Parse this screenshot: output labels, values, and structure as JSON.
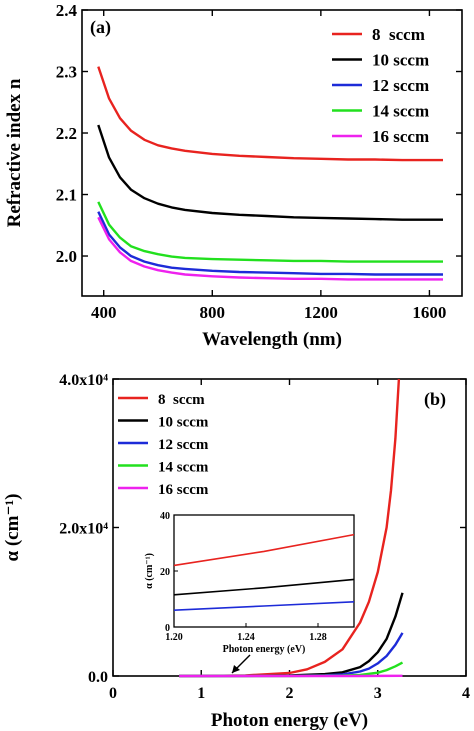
{
  "chart_data": [
    {
      "type": "line",
      "panel_label": "(a)",
      "xlabel": "Wavelength (nm)",
      "ylabel": "Refractive index n",
      "xlim": [
        320,
        1720
      ],
      "ylim": [
        1.935,
        2.4
      ],
      "xticks": [
        400,
        800,
        1200,
        1600
      ],
      "xtick_labels": [
        "400",
        "800",
        "1200",
        "1600"
      ],
      "yticks": [
        2.0,
        2.1,
        2.2,
        2.3,
        2.4
      ],
      "ytick_labels": [
        "2.0",
        "2.1",
        "2.2",
        "2.3",
        "2.4"
      ],
      "legend_position": "top-right",
      "series": [
        {
          "name": "8  sccm",
          "color": "#e8231f",
          "x": [
            380,
            420,
            460,
            500,
            550,
            600,
            650,
            700,
            800,
            900,
            1000,
            1100,
            1200,
            1300,
            1400,
            1500,
            1650
          ],
          "values": [
            2.308,
            2.256,
            2.224,
            2.204,
            2.189,
            2.18,
            2.175,
            2.171,
            2.166,
            2.163,
            2.161,
            2.159,
            2.158,
            2.157,
            2.157,
            2.156,
            2.156
          ]
        },
        {
          "name": "10 sccm",
          "color": "#000000",
          "x": [
            380,
            420,
            460,
            500,
            550,
            600,
            650,
            700,
            800,
            900,
            1000,
            1100,
            1200,
            1300,
            1400,
            1500,
            1650
          ],
          "values": [
            2.213,
            2.16,
            2.128,
            2.108,
            2.094,
            2.085,
            2.079,
            2.075,
            2.07,
            2.067,
            2.065,
            2.063,
            2.062,
            2.061,
            2.06,
            2.059,
            2.059
          ]
        },
        {
          "name": "12 sccm",
          "color": "#1d2bd8",
          "x": [
            380,
            420,
            460,
            500,
            550,
            600,
            650,
            700,
            800,
            900,
            1000,
            1100,
            1200,
            1300,
            1400,
            1500,
            1650
          ],
          "values": [
            2.072,
            2.035,
            2.014,
            2.0,
            1.991,
            1.985,
            1.981,
            1.979,
            1.976,
            1.974,
            1.973,
            1.972,
            1.971,
            1.971,
            1.97,
            1.97,
            1.97
          ]
        },
        {
          "name": "14 sccm",
          "color": "#22e01e",
          "x": [
            380,
            420,
            460,
            500,
            550,
            600,
            650,
            700,
            800,
            900,
            1000,
            1100,
            1200,
            1300,
            1400,
            1500,
            1650
          ],
          "values": [
            2.088,
            2.051,
            2.03,
            2.016,
            2.008,
            2.003,
            1.999,
            1.997,
            1.995,
            1.994,
            1.993,
            1.992,
            1.992,
            1.991,
            1.991,
            1.991,
            1.991
          ]
        },
        {
          "name": "16 sccm",
          "color": "#ee22ee",
          "x": [
            380,
            420,
            460,
            500,
            550,
            600,
            650,
            700,
            800,
            900,
            1000,
            1100,
            1200,
            1300,
            1400,
            1500,
            1650
          ],
          "values": [
            2.063,
            2.027,
            2.006,
            1.992,
            1.983,
            1.977,
            1.973,
            1.97,
            1.967,
            1.965,
            1.964,
            1.963,
            1.963,
            1.962,
            1.962,
            1.962,
            1.962
          ]
        }
      ]
    },
    {
      "type": "line",
      "panel_label": "(b)",
      "xlabel": "Photon energy (eV)",
      "ylabel": "α (cm⁻¹)",
      "xlim": [
        0,
        4
      ],
      "ylim": [
        0,
        40000
      ],
      "xticks": [
        0,
        1,
        2,
        3,
        4
      ],
      "xtick_labels": [
        "0",
        "1",
        "2",
        "3",
        "4"
      ],
      "yticks": [
        0,
        20000,
        40000
      ],
      "ytick_labels": [
        "0.0",
        "2.0x10⁴",
        "4.0x10⁴"
      ],
      "legend_position": "top-left",
      "series": [
        {
          "name": "8  sccm",
          "color": "#e8231f",
          "x": [
            0.75,
            1.0,
            1.5,
            2.0,
            2.2,
            2.4,
            2.6,
            2.8,
            2.9,
            3.0,
            3.1,
            3.15,
            3.2,
            3.24
          ],
          "values": [
            0,
            3,
            80,
            400,
            900,
            1900,
            3600,
            7200,
            10000,
            14000,
            20000,
            25000,
            32000,
            40000
          ]
        },
        {
          "name": "10 sccm",
          "color": "#000000",
          "x": [
            0.75,
            1.5,
            2.0,
            2.4,
            2.6,
            2.8,
            2.9,
            3.0,
            3.1,
            3.2,
            3.28
          ],
          "values": [
            0,
            20,
            80,
            250,
            500,
            1200,
            2000,
            3200,
            5000,
            8000,
            11200
          ]
        },
        {
          "name": "12 sccm",
          "color": "#1d2bd8",
          "x": [
            0.75,
            1.5,
            2.0,
            2.4,
            2.6,
            2.8,
            2.9,
            3.0,
            3.1,
            3.2,
            3.28
          ],
          "values": [
            0,
            8,
            30,
            100,
            220,
            600,
            1000,
            1700,
            2700,
            4200,
            5800
          ]
        },
        {
          "name": "14 sccm",
          "color": "#22e01e",
          "x": [
            0.75,
            2.0,
            2.6,
            2.8,
            3.0,
            3.1,
            3.2,
            3.28
          ],
          "values": [
            0,
            5,
            60,
            150,
            450,
            800,
            1300,
            1800
          ]
        },
        {
          "name": "16 sccm",
          "color": "#ee22ee",
          "x": [
            0.75,
            2.0,
            2.8,
            3.0,
            3.28
          ],
          "values": [
            0,
            0,
            5,
            10,
            30
          ]
        }
      ],
      "inset": {
        "xlabel": "Photon energy (eV)",
        "ylabel": "α (cm⁻¹)",
        "xlim": [
          1.2,
          1.3
        ],
        "ylim": [
          0,
          40
        ],
        "xticks": [
          1.2,
          1.24,
          1.28
        ],
        "xtick_labels": [
          "1.20",
          "1.24",
          "1.28"
        ],
        "yticks": [
          0,
          20,
          40
        ],
        "ytick_labels": [
          "0",
          "20",
          "40"
        ],
        "series": [
          {
            "name": "8  sccm",
            "color": "#e8231f",
            "x": [
              1.2,
              1.25,
              1.3
            ],
            "values": [
              22,
              27,
              33
            ]
          },
          {
            "name": "10 sccm",
            "color": "#000000",
            "x": [
              1.2,
              1.25,
              1.3
            ],
            "values": [
              11.5,
              14,
              17
            ]
          },
          {
            "name": "12 sccm",
            "color": "#1d2bd8",
            "x": [
              1.2,
              1.25,
              1.3
            ],
            "values": [
              6,
              7.5,
              9
            ]
          }
        ]
      }
    }
  ]
}
